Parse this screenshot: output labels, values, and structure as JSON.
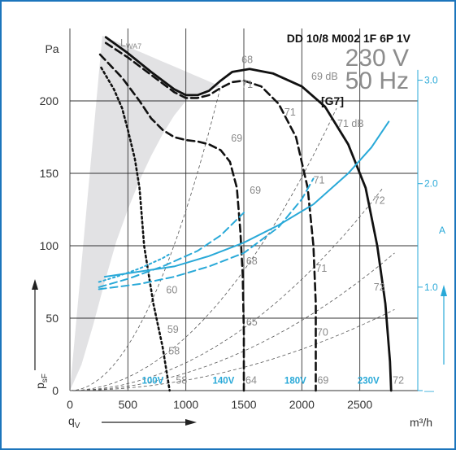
{
  "chart_data": {
    "type": "line",
    "title": "DD 10/8 M002 1F 6P 1V",
    "supply_voltage": "230 V",
    "supply_frequency": "50 Hz",
    "ylabel": "Pa",
    "ylabel_bottom": "p",
    "ylabel_bottom_sub": "sF",
    "xlabel": "q",
    "xlabel_sub": "V",
    "xunit": "m³/h",
    "xlim": [
      0,
      3000
    ],
    "ylim": [
      0,
      250
    ],
    "xticks": [
      "0",
      "500",
      "1000",
      "1500",
      "2000",
      "2500"
    ],
    "yticks": [
      "0",
      "50",
      "100",
      "150",
      "200"
    ],
    "current_axis": {
      "label": "A",
      "ylim": [
        0,
        3.5
      ],
      "ticks": [
        "—",
        "1.0",
        "2.0",
        "3.0"
      ],
      "color": "#29a9d8"
    },
    "annotations": {
      "lwa": "L",
      "lwa_sub": "WA7",
      "point": "[G7]",
      "db_69": "69 dB",
      "db_71": "71 dB"
    },
    "pressure_series": [
      {
        "name": "230V",
        "style": "solid",
        "x": [
          310,
          500,
          700,
          900,
          1000,
          1100,
          1200,
          1300,
          1400,
          1550,
          1750,
          2000,
          2200,
          2400,
          2550,
          2650,
          2720,
          2760,
          2770
        ],
        "y": [
          244,
          233,
          220,
          208,
          204,
          204,
          207,
          214,
          220,
          222,
          219,
          210,
          196,
          170,
          140,
          100,
          60,
          20,
          0
        ]
      },
      {
        "name": "180V",
        "style": "dashed",
        "x": [
          310,
          500,
          700,
          900,
          1000,
          1100,
          1200,
          1300,
          1400,
          1500,
          1650,
          1800,
          1950,
          2050,
          2100,
          2120,
          2120
        ],
        "y": [
          240,
          230,
          218,
          206,
          202,
          202,
          204,
          209,
          213,
          214,
          210,
          198,
          175,
          140,
          100,
          60,
          0
        ]
      },
      {
        "name": "140V",
        "style": "dashed",
        "x": [
          260,
          450,
          600,
          700,
          800,
          900,
          1000,
          1100,
          1200,
          1300,
          1380,
          1440,
          1470,
          1490,
          1500,
          1500
        ],
        "y": [
          232,
          216,
          200,
          188,
          180,
          175,
          173,
          172,
          170,
          166,
          158,
          140,
          110,
          80,
          40,
          0
        ]
      },
      {
        "name": "100V",
        "style": "dotted",
        "x": [
          270,
          380,
          450,
          500,
          560,
          600,
          620,
          640,
          680,
          720,
          760,
          800,
          830,
          860
        ],
        "y": [
          223,
          208,
          195,
          180,
          160,
          140,
          120,
          100,
          80,
          60,
          45,
          30,
          15,
          0
        ]
      }
    ],
    "current_series": [
      {
        "name": "230V",
        "style": "solid",
        "x": [
          300,
          600,
          900,
          1200,
          1500,
          1800,
          2100,
          2400,
          2600,
          2750
        ],
        "y": [
          1.1,
          1.15,
          1.2,
          1.3,
          1.43,
          1.6,
          1.8,
          2.1,
          2.35,
          2.6
        ]
      },
      {
        "name": "180V",
        "style": "dashed",
        "x": [
          250,
          600,
          900,
          1200,
          1500,
          1800,
          2000,
          2100
        ],
        "y": [
          0.98,
          1.03,
          1.1,
          1.2,
          1.33,
          1.58,
          1.85,
          2.05
        ]
      },
      {
        "name": "140V",
        "style": "dashed",
        "x": [
          250,
          500,
          800,
          1100,
          1300,
          1500
        ],
        "y": [
          1.0,
          1.08,
          1.2,
          1.35,
          1.5,
          1.72
        ]
      },
      {
        "name": "100V",
        "style": "dotted",
        "x": [
          250,
          400,
          600,
          800,
          860
        ],
        "y": [
          1.05,
          1.1,
          1.18,
          1.28,
          1.32
        ]
      }
    ],
    "system_curves": [
      {
        "xe": 1300,
        "ye": 210
      },
      {
        "xe": 2300,
        "ye": 195
      },
      {
        "xe": 2700,
        "ye": 140
      },
      {
        "xe": 2800,
        "ye": 95
      },
      {
        "xe": 2800,
        "ye": 56
      }
    ],
    "sound_region_upper": {
      "x": [
        0,
        100,
        200,
        300,
        400,
        500,
        600,
        700,
        800,
        900,
        1000,
        1100,
        1200,
        1300
      ],
      "y": [
        0,
        18,
        45,
        75,
        103,
        125,
        145,
        162,
        177,
        190,
        200,
        205,
        208,
        210
      ]
    },
    "sound_region_lower": {
      "x_end": 1300,
      "y_end": 210
    },
    "sound_labels": [
      {
        "text": "68",
        "x": 1480,
        "y": 226
      },
      {
        "text": "71",
        "x": 1480,
        "y": 209
      },
      {
        "text": "71",
        "x": 1850,
        "y": 190
      },
      {
        "text": "69",
        "x": 1390,
        "y": 172
      },
      {
        "text": "69",
        "x": 1550,
        "y": 136
      },
      {
        "text": "71",
        "x": 2100,
        "y": 143
      },
      {
        "text": "71",
        "x": 2120,
        "y": 82
      },
      {
        "text": "72",
        "x": 2620,
        "y": 129
      },
      {
        "text": "72",
        "x": 2620,
        "y": 69
      },
      {
        "text": "68",
        "x": 1520,
        "y": 87
      },
      {
        "text": "60",
        "x": 830,
        "y": 67
      },
      {
        "text": "59",
        "x": 840,
        "y": 40
      },
      {
        "text": "65",
        "x": 1520,
        "y": 45
      },
      {
        "text": "70",
        "x": 2130,
        "y": 38
      },
      {
        "text": "58",
        "x": 850,
        "y": 25
      }
    ],
    "voltage_labels": [
      {
        "text": "100V",
        "x": 620,
        "y": 3,
        "suffix": "58",
        "sx": 900
      },
      {
        "text": "140V",
        "x": 1230,
        "y": 3,
        "suffix": "64",
        "sx": 1500
      },
      {
        "text": "180V",
        "x": 1850,
        "y": 3,
        "suffix": "69",
        "sx": 2120
      },
      {
        "text": "230V",
        "x": 2480,
        "y": 3,
        "suffix": "72",
        "sx": 2770
      }
    ]
  }
}
